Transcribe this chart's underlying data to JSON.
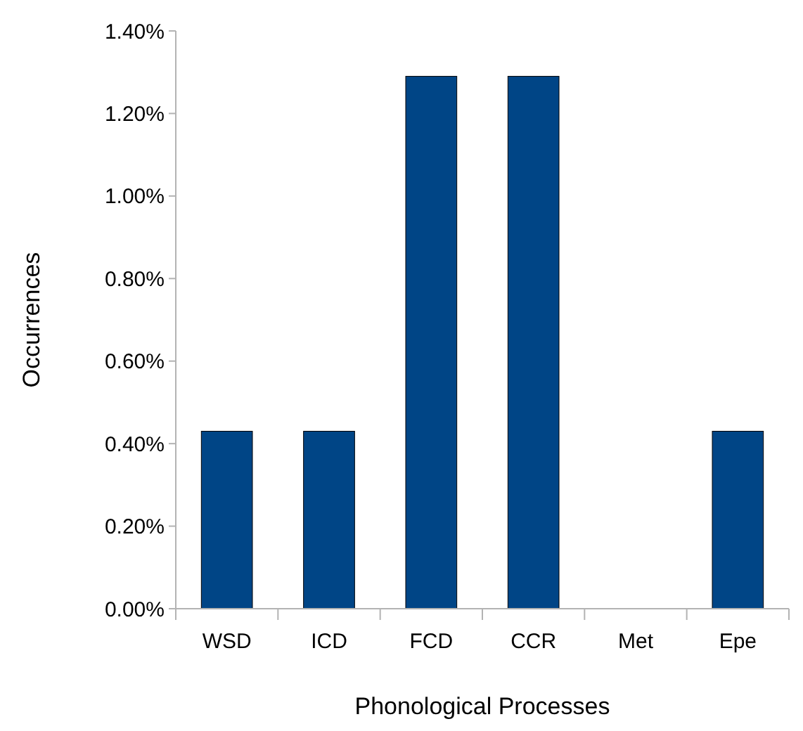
{
  "chart_data": {
    "type": "bar",
    "xlabel": "Phonological Processes",
    "ylabel": "Occurrences",
    "categories": [
      "WSD",
      "ICD",
      "FCD",
      "CCR",
      "Met",
      "Epe"
    ],
    "values": [
      0.43,
      0.43,
      1.29,
      1.29,
      0,
      0.43
    ],
    "color": "#004586",
    "ylim": [
      0,
      1.4
    ],
    "yticks": [
      {
        "value": 0,
        "label": "0.00%"
      },
      {
        "value": 0.2,
        "label": "0.20%"
      },
      {
        "value": 0.4,
        "label": "0.40%"
      },
      {
        "value": 0.6,
        "label": "0.60%"
      },
      {
        "value": 0.8,
        "label": "0.80%"
      },
      {
        "value": 1.0,
        "label": "1.00%"
      },
      {
        "value": 1.2,
        "label": "1.20%"
      },
      {
        "value": 1.4,
        "label": "1.40%"
      }
    ],
    "grid": false
  }
}
